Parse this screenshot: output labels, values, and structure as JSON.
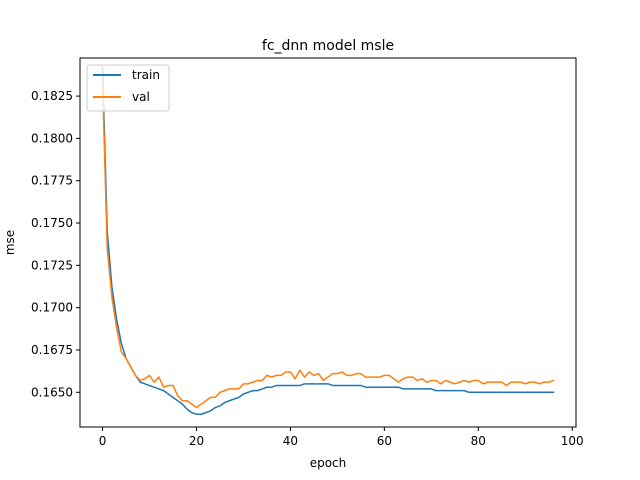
{
  "chart_data": {
    "type": "line",
    "title": "fc_dnn model msle",
    "xlabel": "epoch",
    "ylabel": "mse",
    "xlim": [
      -4.8,
      100.8
    ],
    "ylim": [
      0.16295,
      0.18475
    ],
    "xticks": [
      0,
      20,
      40,
      60,
      80,
      100
    ],
    "yticks": [
      0.165,
      0.1675,
      0.17,
      0.1725,
      0.175,
      0.1775,
      0.18,
      0.1825
    ],
    "xtick_labels": [
      "0",
      "20",
      "40",
      "60",
      "80",
      "100"
    ],
    "ytick_labels": [
      "0.1650",
      "0.1675",
      "0.1700",
      "0.1725",
      "0.1750",
      "0.1775",
      "0.1800",
      "0.1825"
    ],
    "grid": false,
    "legend": {
      "placement": "upper left",
      "entries": [
        "train",
        "val"
      ]
    },
    "series": [
      {
        "name": "train",
        "color": "#1f77b4",
        "x": [
          0,
          1,
          2,
          3,
          4,
          5,
          6,
          7,
          8,
          9,
          10,
          11,
          12,
          13,
          14,
          15,
          16,
          17,
          18,
          19,
          20,
          21,
          22,
          23,
          24,
          25,
          26,
          27,
          28,
          29,
          30,
          31,
          32,
          33,
          34,
          35,
          36,
          37,
          38,
          39,
          40,
          41,
          42,
          43,
          44,
          45,
          46,
          47,
          48,
          49,
          50,
          51,
          52,
          53,
          54,
          55,
          56,
          57,
          58,
          59,
          60,
          61,
          62,
          63,
          64,
          65,
          66,
          67,
          68,
          69,
          70,
          71,
          72,
          73,
          74,
          75,
          76,
          77,
          78,
          79,
          80,
          81,
          82,
          83,
          84,
          85,
          86,
          87,
          88,
          89,
          90,
          91,
          92,
          93,
          94,
          95,
          96
        ],
        "y": [
          0.1842,
          0.1745,
          0.1712,
          0.1693,
          0.1679,
          0.167,
          0.1665,
          0.166,
          0.1656,
          0.1655,
          0.1654,
          0.1653,
          0.1652,
          0.1651,
          0.1649,
          0.1647,
          0.1645,
          0.1643,
          0.164,
          0.1638,
          0.1637,
          0.1637,
          0.1638,
          0.1639,
          0.1641,
          0.1642,
          0.1644,
          0.1645,
          0.1646,
          0.1647,
          0.1649,
          0.165,
          0.1651,
          0.1651,
          0.1652,
          0.1653,
          0.1653,
          0.1654,
          0.1654,
          0.1654,
          0.1654,
          0.1654,
          0.1654,
          0.1655,
          0.1655,
          0.1655,
          0.1655,
          0.1655,
          0.1655,
          0.1654,
          0.1654,
          0.1654,
          0.1654,
          0.1654,
          0.1654,
          0.1654,
          0.1653,
          0.1653,
          0.1653,
          0.1653,
          0.1653,
          0.1653,
          0.1653,
          0.1653,
          0.1652,
          0.1652,
          0.1652,
          0.1652,
          0.1652,
          0.1652,
          0.1652,
          0.1651,
          0.1651,
          0.1651,
          0.1651,
          0.1651,
          0.1651,
          0.1651,
          0.165,
          0.165,
          0.165,
          0.165,
          0.165,
          0.165,
          0.165,
          0.165,
          0.165,
          0.165,
          0.165,
          0.165,
          0.165,
          0.165,
          0.165,
          0.165,
          0.165,
          0.165,
          0.165
        ]
      },
      {
        "name": "val",
        "color": "#ff7f0e",
        "x": [
          0,
          1,
          2,
          3,
          4,
          5,
          6,
          7,
          8,
          9,
          10,
          11,
          12,
          13,
          14,
          15,
          16,
          17,
          18,
          19,
          20,
          21,
          22,
          23,
          24,
          25,
          26,
          27,
          28,
          29,
          30,
          31,
          32,
          33,
          34,
          35,
          36,
          37,
          38,
          39,
          40,
          41,
          42,
          43,
          44,
          45,
          46,
          47,
          48,
          49,
          50,
          51,
          52,
          53,
          54,
          55,
          56,
          57,
          58,
          59,
          60,
          61,
          62,
          63,
          64,
          65,
          66,
          67,
          68,
          69,
          70,
          71,
          72,
          73,
          74,
          75,
          76,
          77,
          78,
          79,
          80,
          81,
          82,
          83,
          84,
          85,
          86,
          87,
          88,
          89,
          90,
          91,
          92,
          93,
          94,
          95,
          96
        ],
        "y": [
          0.1833,
          0.1735,
          0.1706,
          0.1688,
          0.1674,
          0.167,
          0.1665,
          0.166,
          0.1657,
          0.1658,
          0.166,
          0.1656,
          0.1659,
          0.1653,
          0.1654,
          0.1654,
          0.1648,
          0.1645,
          0.1645,
          0.1643,
          0.1641,
          0.1643,
          0.1645,
          0.1647,
          0.1647,
          0.165,
          0.1651,
          0.1652,
          0.1652,
          0.1652,
          0.1655,
          0.1655,
          0.1656,
          0.1657,
          0.1657,
          0.166,
          0.1659,
          0.166,
          0.166,
          0.1662,
          0.1662,
          0.1658,
          0.1663,
          0.1659,
          0.1662,
          0.166,
          0.1661,
          0.1657,
          0.1659,
          0.1661,
          0.1661,
          0.1662,
          0.166,
          0.166,
          0.1661,
          0.1661,
          0.1659,
          0.1659,
          0.1659,
          0.1659,
          0.166,
          0.166,
          0.1658,
          0.1656,
          0.1658,
          0.1659,
          0.1659,
          0.1657,
          0.1658,
          0.1656,
          0.1657,
          0.1657,
          0.1655,
          0.1657,
          0.1656,
          0.1655,
          0.1656,
          0.1657,
          0.1656,
          0.1657,
          0.1657,
          0.1655,
          0.1656,
          0.1656,
          0.1656,
          0.1656,
          0.1654,
          0.1656,
          0.1656,
          0.1656,
          0.1655,
          0.1656,
          0.1656,
          0.1655,
          0.1656,
          0.1656,
          0.1657
        ]
      }
    ]
  }
}
